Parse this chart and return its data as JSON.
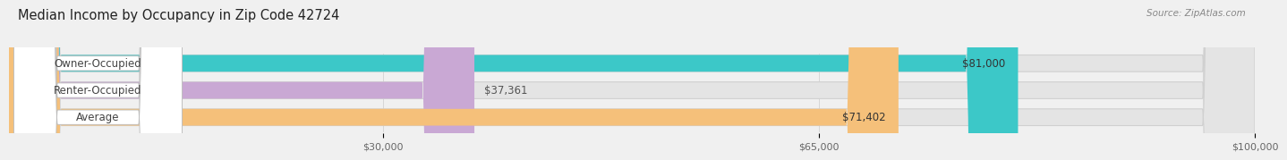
{
  "title": "Median Income by Occupancy in Zip Code 42724",
  "source": "Source: ZipAtlas.com",
  "categories": [
    "Owner-Occupied",
    "Renter-Occupied",
    "Average"
  ],
  "values": [
    81000,
    37361,
    71402
  ],
  "labels": [
    "$81,000",
    "$37,361",
    "$71,402"
  ],
  "bar_colors": [
    "#3cc8c8",
    "#c9a8d4",
    "#f5c07a"
  ],
  "background_color": "#f0f0f0",
  "bar_bg_color": "#e4e4e4",
  "xlim": [
    0,
    100000
  ],
  "xticks": [
    30000,
    65000,
    100000
  ],
  "xtick_labels": [
    "$30,000",
    "$65,000",
    "$100,000"
  ],
  "title_fontsize": 10.5,
  "source_fontsize": 7.5,
  "label_fontsize": 8.5,
  "tick_fontsize": 8,
  "bar_height": 0.62,
  "value_label_fontsize": 8.5,
  "label_pill_color": "#ffffff",
  "label_pill_edge": "#cccccc",
  "grid_color": "#cccccc",
  "bar_gap": 0.38
}
